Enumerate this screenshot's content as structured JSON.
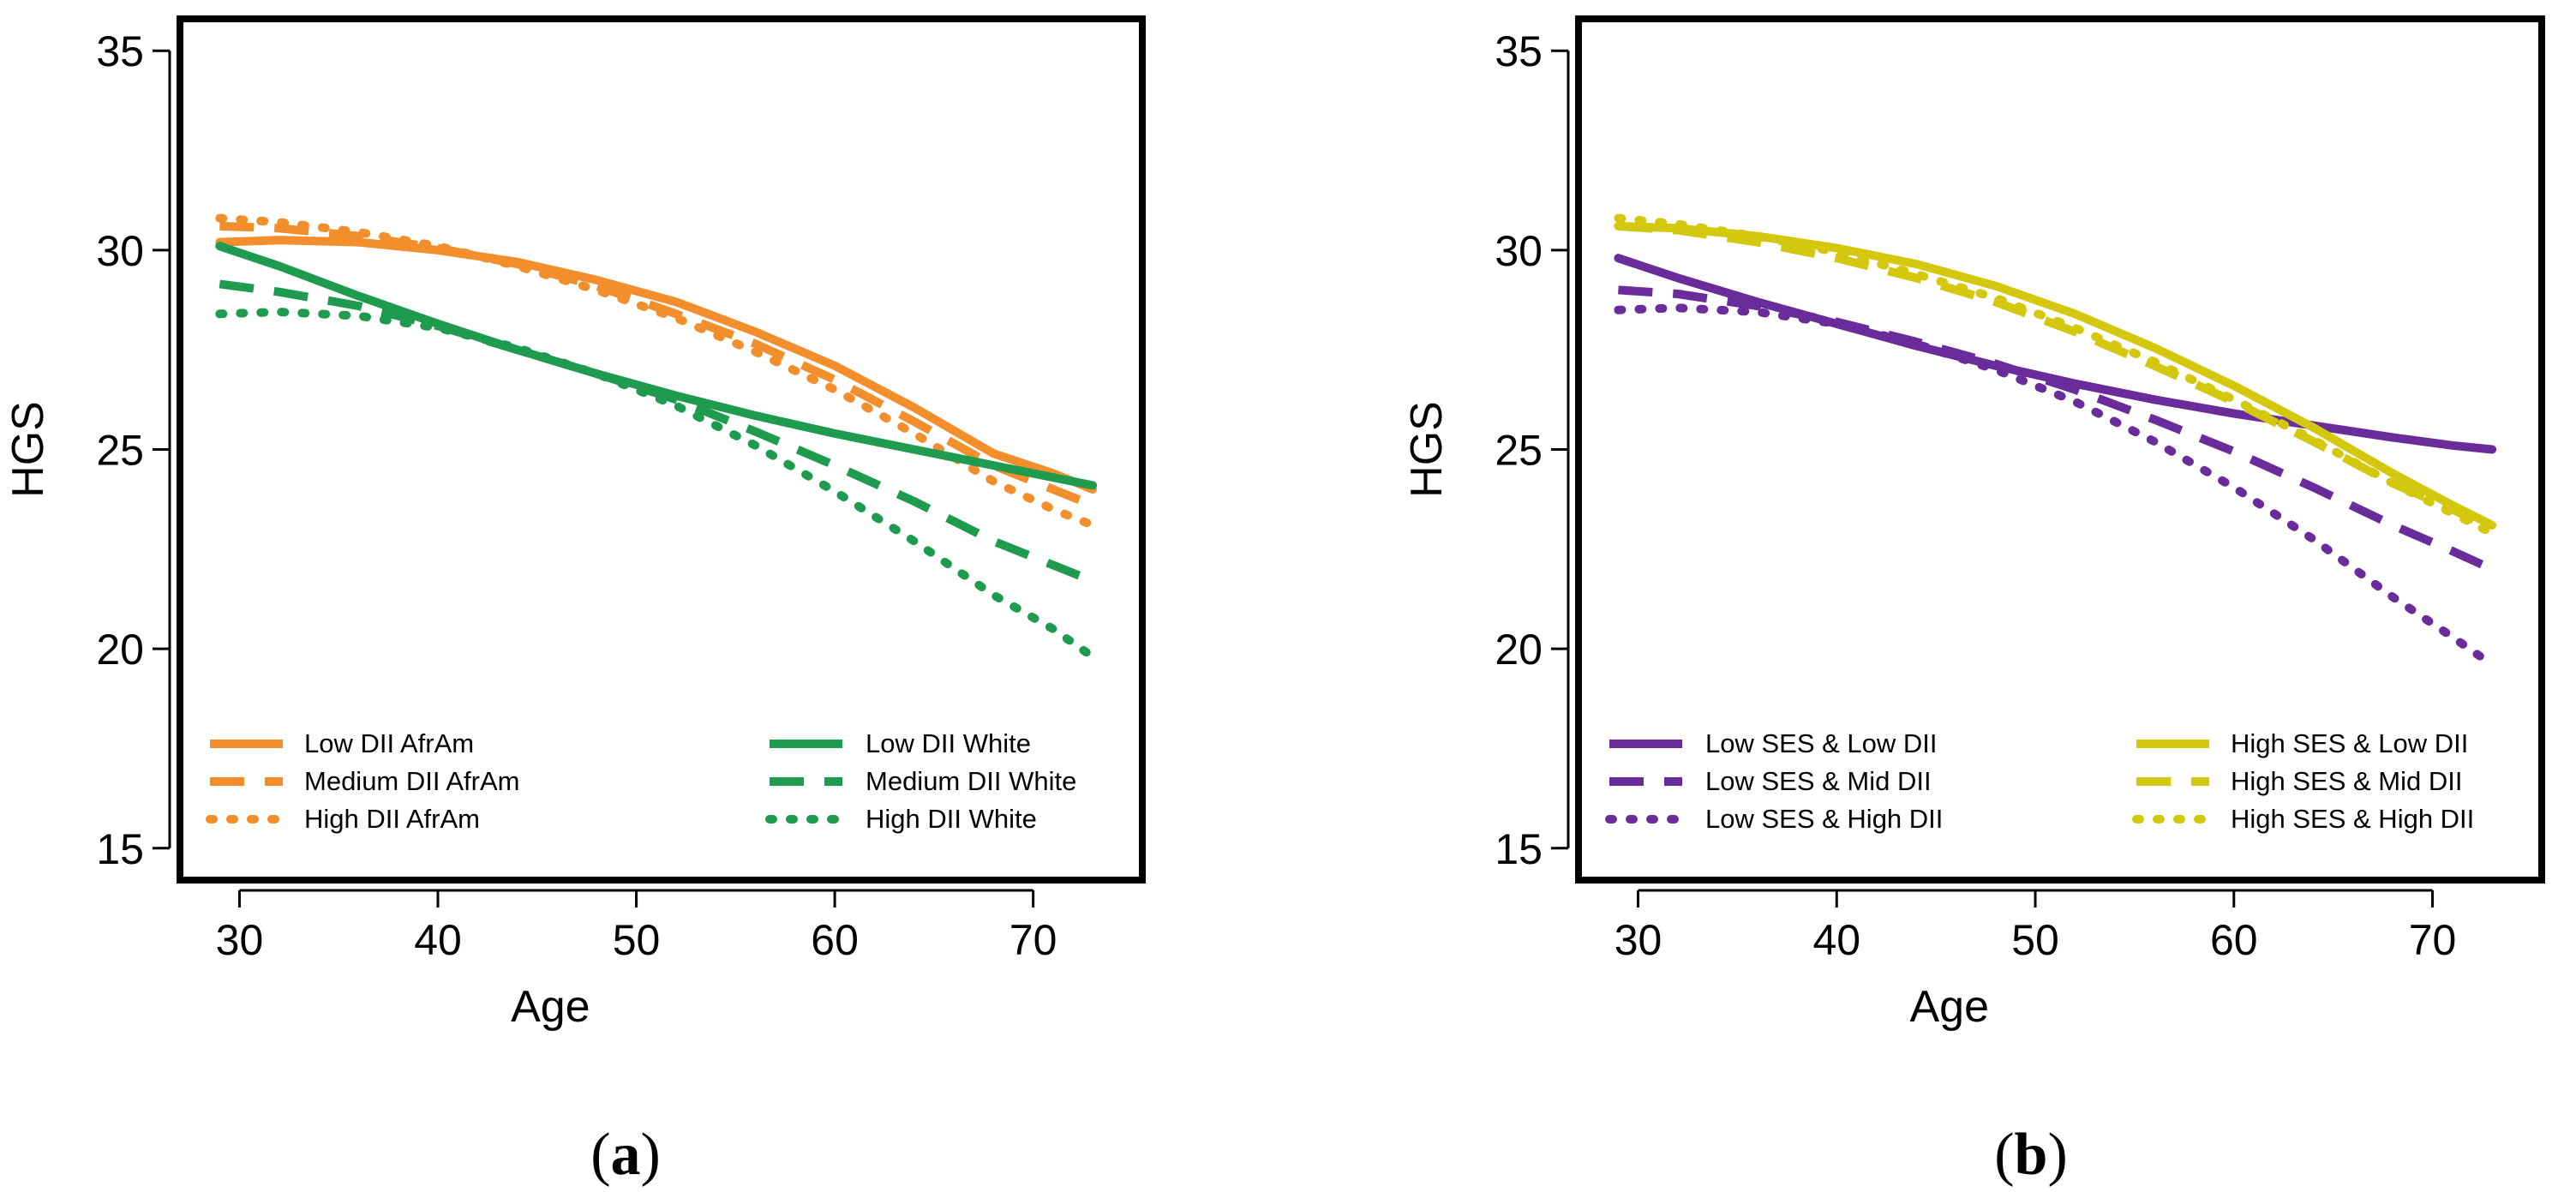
{
  "chart_data": [
    {
      "type": "line",
      "panel_label": "a",
      "xlabel": "Age",
      "ylabel": "HGS",
      "xlim": [
        27,
        75.5
      ],
      "ylim": [
        14.2,
        35.8
      ],
      "xticks": [
        30,
        40,
        50,
        60,
        70
      ],
      "yticks": [
        15,
        20,
        25,
        30,
        35
      ],
      "grid": false,
      "legend_position": "bottom-left",
      "series": [
        {
          "name": "Low DII AfrAm",
          "color": "#F28E2B",
          "style": "solid",
          "x": [
            29,
            32,
            36,
            40,
            44,
            48,
            52,
            56,
            60,
            64,
            68,
            71,
            73
          ],
          "y": [
            30.2,
            30.25,
            30.2,
            30.0,
            29.7,
            29.25,
            28.7,
            27.95,
            27.1,
            26.05,
            24.9,
            24.4,
            24.0
          ]
        },
        {
          "name": "Medium DII AfrAm",
          "color": "#F28E2B",
          "style": "dashed",
          "x": [
            29,
            32,
            36,
            40,
            44,
            48,
            52,
            56,
            60,
            64,
            68,
            71,
            73
          ],
          "y": [
            30.6,
            30.55,
            30.35,
            30.05,
            29.65,
            29.1,
            28.4,
            27.65,
            26.75,
            25.7,
            24.6,
            24.0,
            23.6
          ]
        },
        {
          "name": "High DII AfrAm",
          "color": "#F28E2B",
          "style": "dotted",
          "x": [
            29,
            32,
            36,
            40,
            44,
            48,
            52,
            56,
            60,
            64,
            68,
            71,
            73
          ],
          "y": [
            30.8,
            30.7,
            30.45,
            30.1,
            29.6,
            29.0,
            28.3,
            27.45,
            26.5,
            25.4,
            24.2,
            23.5,
            23.1
          ]
        },
        {
          "name": "Low DII White",
          "color": "#1E9B4F",
          "style": "solid",
          "x": [
            29,
            32,
            36,
            40,
            44,
            48,
            52,
            56,
            60,
            64,
            68,
            71,
            73
          ],
          "y": [
            30.1,
            29.6,
            28.85,
            28.15,
            27.5,
            26.9,
            26.35,
            25.85,
            25.4,
            25.0,
            24.6,
            24.3,
            24.1
          ]
        },
        {
          "name": "Medium DII White",
          "color": "#1E9B4F",
          "style": "dashed",
          "x": [
            29,
            32,
            36,
            40,
            44,
            48,
            52,
            56,
            60,
            64,
            68,
            71,
            73
          ],
          "y": [
            29.15,
            28.95,
            28.6,
            28.1,
            27.5,
            26.9,
            26.25,
            25.45,
            24.6,
            23.7,
            22.7,
            22.1,
            21.7
          ]
        },
        {
          "name": "High DII White",
          "color": "#1E9B4F",
          "style": "dotted",
          "x": [
            29,
            32,
            36,
            40,
            44,
            48,
            52,
            56,
            60,
            64,
            68,
            71,
            73
          ],
          "y": [
            28.4,
            28.45,
            28.35,
            28.05,
            27.55,
            26.9,
            26.1,
            25.1,
            23.95,
            22.7,
            21.35,
            20.5,
            19.8
          ]
        }
      ]
    },
    {
      "type": "line",
      "panel_label": "b",
      "xlabel": "Age",
      "ylabel": "HGS",
      "xlim": [
        27,
        75.5
      ],
      "ylim": [
        14.2,
        35.8
      ],
      "xticks": [
        30,
        40,
        50,
        60,
        70
      ],
      "yticks": [
        15,
        20,
        25,
        30,
        35
      ],
      "grid": false,
      "legend_position": "bottom",
      "series": [
        {
          "name": "Low SES & Low DII",
          "color": "#6A2C9A",
          "style": "solid",
          "x": [
            29,
            32,
            36,
            40,
            44,
            48,
            52,
            56,
            60,
            64,
            68,
            71,
            73
          ],
          "y": [
            29.8,
            29.3,
            28.7,
            28.15,
            27.6,
            27.1,
            26.65,
            26.25,
            25.9,
            25.6,
            25.3,
            25.1,
            25.0
          ]
        },
        {
          "name": "Low SES & Mid DII",
          "color": "#6A2C9A",
          "style": "dashed",
          "x": [
            29,
            32,
            36,
            40,
            44,
            48,
            52,
            56,
            60,
            64,
            68,
            71,
            73
          ],
          "y": [
            29.0,
            28.9,
            28.6,
            28.2,
            27.7,
            27.15,
            26.5,
            25.75,
            24.95,
            24.05,
            23.1,
            22.45,
            22.0
          ]
        },
        {
          "name": "Low SES & High DII",
          "color": "#6A2C9A",
          "style": "dotted",
          "x": [
            29,
            32,
            36,
            40,
            44,
            48,
            52,
            56,
            60,
            64,
            68,
            71,
            73
          ],
          "y": [
            28.5,
            28.55,
            28.45,
            28.15,
            27.65,
            27.0,
            26.2,
            25.2,
            24.05,
            22.75,
            21.3,
            20.3,
            19.6
          ]
        },
        {
          "name": "High SES & Low DII",
          "color": "#D4C80F",
          "style": "solid",
          "x": [
            29,
            32,
            36,
            40,
            44,
            48,
            52,
            56,
            60,
            64,
            68,
            71,
            73
          ],
          "y": [
            30.6,
            30.55,
            30.35,
            30.05,
            29.65,
            29.1,
            28.4,
            27.55,
            26.6,
            25.55,
            24.4,
            23.6,
            23.1
          ]
        },
        {
          "name": "High SES & Mid DII",
          "color": "#D4C80F",
          "style": "dashed",
          "x": [
            29,
            32,
            36,
            40,
            44,
            48,
            52,
            56,
            60,
            64,
            68,
            71,
            73
          ],
          "y": [
            30.6,
            30.5,
            30.2,
            29.8,
            29.3,
            28.7,
            27.95,
            27.1,
            26.2,
            25.2,
            24.15,
            23.5,
            23.0
          ]
        },
        {
          "name": "High SES & High DII",
          "color": "#D4C80F",
          "style": "dotted",
          "x": [
            29,
            32,
            36,
            40,
            44,
            48,
            52,
            56,
            60,
            64,
            68,
            71,
            73
          ],
          "y": [
            30.8,
            30.65,
            30.35,
            29.95,
            29.4,
            28.8,
            28.05,
            27.2,
            26.25,
            25.25,
            24.15,
            23.4,
            22.9
          ]
        }
      ]
    }
  ]
}
